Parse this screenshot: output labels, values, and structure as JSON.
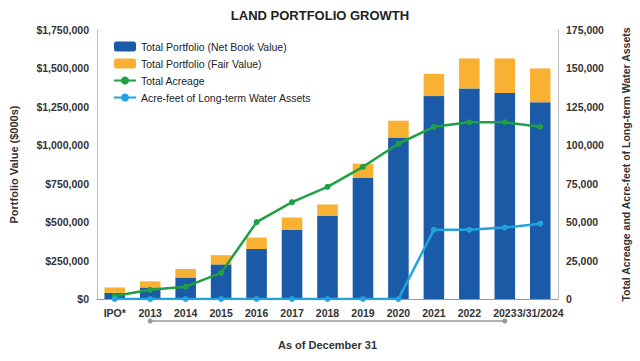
{
  "chart_data": {
    "type": "bar",
    "title": "LAND PORTFOLIO GROWTH",
    "y_label": "Portfolio Value ($000s)",
    "y2_label": "Total Acreage and Acre-feet of Long-term Water Assets",
    "x_label": "As of December 31",
    "categories": [
      "IPO*",
      "2013",
      "2014",
      "2015",
      "2016",
      "2017",
      "2018",
      "2019",
      "2020",
      "2021",
      "2022",
      "2023",
      "3/31/2024"
    ],
    "stacked": true,
    "grid": false,
    "legend": "top-left",
    "series": [
      {
        "name": "Total Portfolio (Net Book Value)",
        "type": "bar",
        "color": "#1b5aa6",
        "values": [
          40000,
          75000,
          140000,
          225000,
          325000,
          450000,
          540000,
          790000,
          1050000,
          1320000,
          1370000,
          1340000,
          1280000
        ]
      },
      {
        "name": "Total Portfolio (Fair Value)",
        "type": "bar",
        "color": "#f8b133",
        "values": [
          35000,
          40000,
          55000,
          60000,
          75000,
          80000,
          75000,
          90000,
          110000,
          145000,
          195000,
          225000,
          220000
        ]
      },
      {
        "name": "Total Acreage",
        "type": "line",
        "axis": "y2",
        "color": "#1fa045",
        "marker": "circle",
        "values": [
          2000,
          6000,
          8000,
          17000,
          50000,
          63000,
          73000,
          86000,
          101000,
          112000,
          115000,
          115000,
          112000
        ]
      },
      {
        "name": "Acre-feet of Long-term Water Assets",
        "type": "line",
        "axis": "y2",
        "color": "#22a3e0",
        "marker": "circle",
        "values": [
          0,
          0,
          0,
          0,
          0,
          0,
          0,
          0,
          0,
          45000,
          45000,
          46500,
          49000
        ]
      }
    ],
    "ylim": [
      0,
      1750000
    ],
    "yticks": [
      {
        "value": 0,
        "label": "$0"
      },
      {
        "value": 250000,
        "label": "$250,000"
      },
      {
        "value": 500000,
        "label": "$500,000"
      },
      {
        "value": 750000,
        "label": "$750,000"
      },
      {
        "value": 1000000,
        "label": "$1,000,000"
      },
      {
        "value": 1250000,
        "label": "$1,250,000"
      },
      {
        "value": 1500000,
        "label": "$1,500,000"
      },
      {
        "value": 1750000,
        "label": "$1,750,000"
      }
    ],
    "y2lim": [
      0,
      175000
    ],
    "y2ticks": [
      0,
      {
        "value": 25000,
        "label": "25,000"
      },
      {
        "value": 50000,
        "label": "50,000"
      },
      {
        "value": 75000,
        "label": "75,000"
      },
      {
        "value": 100000,
        "label": "100,000"
      },
      {
        "value": 125000,
        "label": "125,000"
      },
      {
        "value": 150000,
        "label": "150,000"
      },
      {
        "value": 175000,
        "label": "175,000"
      }
    ]
  }
}
